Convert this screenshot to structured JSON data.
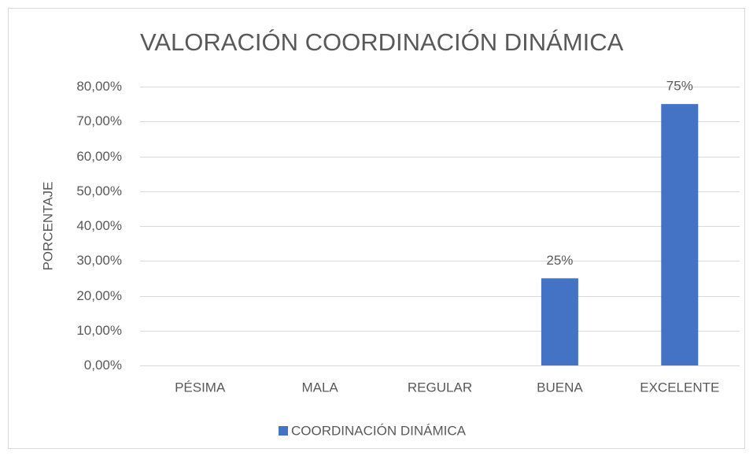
{
  "chart_data": {
    "type": "bar",
    "title": "VALORACIÓN COORDINACIÓN DINÁMICA",
    "y_label": "PORCENTAJE",
    "categories": [
      "PÉSIMA",
      "MALA",
      "REGULAR",
      "BUENA",
      "EXCELENTE"
    ],
    "series": [
      {
        "name": "COORDINACIÓN DINÁMICA",
        "color": "#4472c4",
        "values": [
          0,
          0,
          0,
          25,
          75
        ],
        "value_labels": [
          null,
          null,
          null,
          "25%",
          "75%"
        ]
      }
    ],
    "ylim": [
      0,
      80
    ],
    "yticks": [
      {
        "value": 0,
        "label": "0,00%"
      },
      {
        "value": 10,
        "label": "10,00%"
      },
      {
        "value": 20,
        "label": "20,00%"
      },
      {
        "value": 30,
        "label": "30,00%"
      },
      {
        "value": 40,
        "label": "40,00%"
      },
      {
        "value": 50,
        "label": "50,00%"
      },
      {
        "value": 60,
        "label": "60,00%"
      },
      {
        "value": 70,
        "label": "70,00%"
      },
      {
        "value": 80,
        "label": "80,00%"
      }
    ],
    "grid": true,
    "legend": "bottom"
  }
}
